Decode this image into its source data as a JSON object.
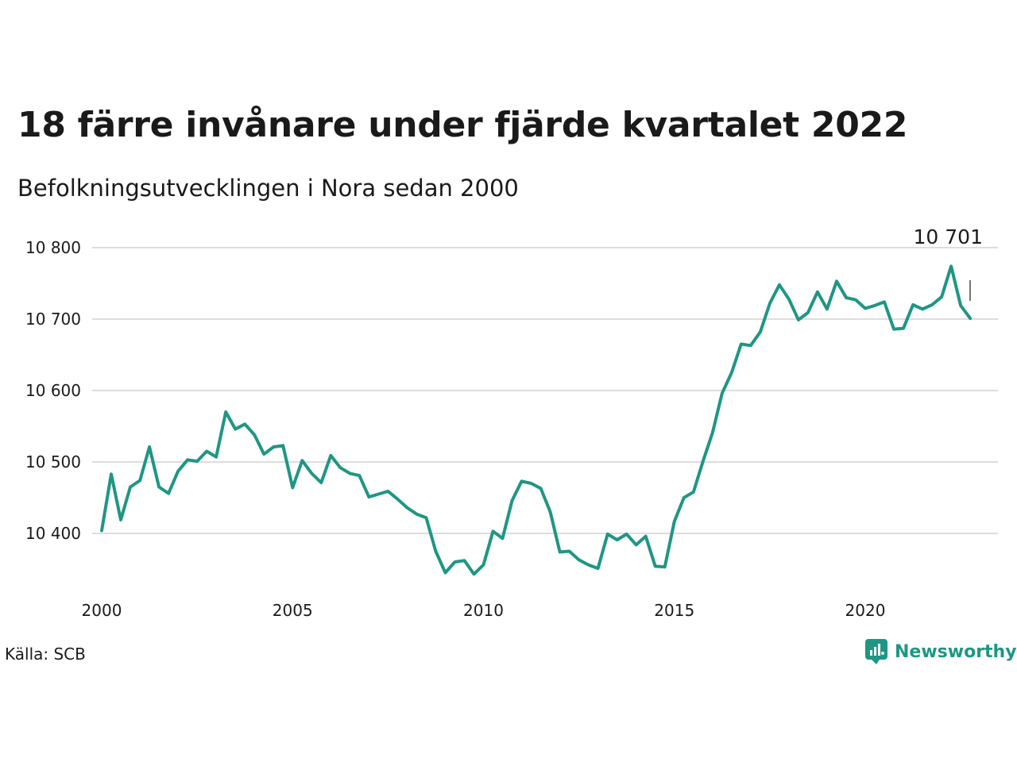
{
  "title": "18 färre invånare under fjärde kvartalet 2022",
  "subtitle": "Befolkningsutvecklingen i Nora sedan 2000",
  "source": "Källa: SCB",
  "brand": {
    "name": "Newsworthy",
    "icon": "newsworthy-logo-icon",
    "color": "#1f9684"
  },
  "chart_data": {
    "type": "line",
    "title": "18 färre invånare under fjärde kvartalet 2022",
    "subtitle": "Befolkningsutvecklingen i Nora sedan 2000",
    "xlabel": "",
    "ylabel": "",
    "xlim": [
      2000.0,
      2023.0
    ],
    "ylim": [
      10330,
      10820
    ],
    "grid": true,
    "line_color": "#1f9684",
    "x_ticks": [
      2000,
      2005,
      2010,
      2015,
      2020
    ],
    "x_tick_labels": [
      "2000",
      "2005",
      "2010",
      "2015",
      "2020"
    ],
    "y_ticks": [
      10400,
      10500,
      10600,
      10700,
      10800
    ],
    "y_tick_labels": [
      "10 400",
      "10 500",
      "10 600",
      "10 700",
      "10 800"
    ],
    "annotation": {
      "label": "10 701",
      "value": 10701
    },
    "series": [
      {
        "x": [
          "2000-Q1",
          "2000-Q2",
          "2000-Q3",
          "2000-Q4",
          "2001-Q1",
          "2001-Q2",
          "2001-Q3",
          "2001-Q4",
          "2002-Q1",
          "2002-Q2",
          "2002-Q3",
          "2002-Q4",
          "2003-Q1",
          "2003-Q2",
          "2003-Q3",
          "2003-Q4",
          "2004-Q1",
          "2004-Q2",
          "2004-Q3",
          "2004-Q4",
          "2005-Q1",
          "2005-Q2",
          "2005-Q3",
          "2005-Q4",
          "2006-Q1",
          "2006-Q2",
          "2006-Q3",
          "2006-Q4",
          "2007-Q1",
          "2007-Q2",
          "2007-Q3",
          "2007-Q4",
          "2008-Q1",
          "2008-Q2",
          "2008-Q3",
          "2008-Q4",
          "2009-Q1",
          "2009-Q2",
          "2009-Q3",
          "2009-Q4",
          "2010-Q1",
          "2010-Q2",
          "2010-Q3",
          "2010-Q4",
          "2011-Q1",
          "2011-Q2",
          "2011-Q3",
          "2011-Q4",
          "2012-Q1",
          "2012-Q2",
          "2012-Q3",
          "2012-Q4",
          "2013-Q1",
          "2013-Q2",
          "2013-Q3",
          "2013-Q4",
          "2014-Q1",
          "2014-Q2",
          "2014-Q3",
          "2014-Q4",
          "2015-Q1",
          "2015-Q2",
          "2015-Q3",
          "2015-Q4",
          "2016-Q1",
          "2016-Q2",
          "2016-Q3",
          "2016-Q4",
          "2017-Q1",
          "2017-Q2",
          "2017-Q3",
          "2017-Q4",
          "2018-Q1",
          "2018-Q2",
          "2018-Q3",
          "2018-Q4",
          "2019-Q1",
          "2019-Q2",
          "2019-Q3",
          "2019-Q4",
          "2020-Q1",
          "2020-Q2",
          "2020-Q3",
          "2020-Q4",
          "2021-Q1",
          "2021-Q2",
          "2021-Q3",
          "2021-Q4",
          "2022-Q1",
          "2022-Q2",
          "2022-Q3",
          "2022-Q4"
        ],
        "values": [
          10404,
          10483,
          10419,
          10465,
          10474,
          10521,
          10465,
          10456,
          10487,
          10503,
          10501,
          10515,
          10507,
          10570,
          10546,
          10553,
          10538,
          10511,
          10521,
          10523,
          10464,
          10502,
          10484,
          10471,
          10509,
          10492,
          10484,
          10481,
          10451,
          10455,
          10459,
          10448,
          10436,
          10427,
          10422,
          10375,
          10345,
          10360,
          10362,
          10343,
          10356,
          10403,
          10393,
          10446,
          10473,
          10470,
          10463,
          10430,
          10374,
          10375,
          10363,
          10356,
          10351,
          10399,
          10391,
          10399,
          10384,
          10396,
          10354,
          10353,
          10417,
          10450,
          10458,
          10501,
          10541,
          10596,
          10625,
          10665,
          10663,
          10682,
          10722,
          10748,
          10728,
          10699,
          10709,
          10738,
          10714,
          10753,
          10730,
          10727,
          10715,
          10719,
          10724,
          10686,
          10687,
          10720,
          10714,
          10720,
          10731,
          10774,
          10719,
          10701
        ]
      }
    ]
  }
}
